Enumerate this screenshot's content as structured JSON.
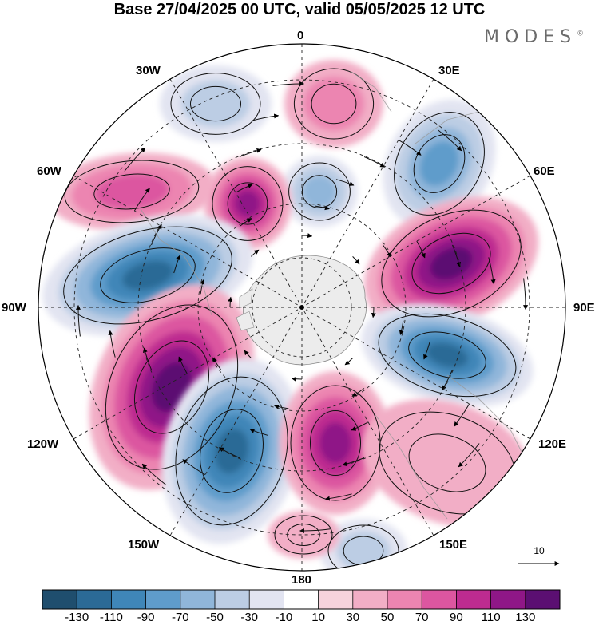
{
  "title": "Base 27/04/2025 00 UTC, valid 05/05/2025 12 UTC",
  "brand": "MODES",
  "brand_mark": "®",
  "longitude_labels": {
    "top": "0",
    "top_left": "30W",
    "top_right": "30E",
    "upper_left": "60W",
    "upper_right": "60E",
    "left": "90W",
    "right": "90E",
    "lower_left": "120W",
    "lower_right": "120E",
    "bottom_left": "150W",
    "bottom_right": "150E",
    "bottom": "180"
  },
  "vector_scale": {
    "label": "10"
  },
  "colorbar": {
    "colors": [
      "#1f4e6e",
      "#2b6a96",
      "#3f86b8",
      "#5f9ccb",
      "#90b6da",
      "#bccde4",
      "#e2e4f1",
      "#ffffff",
      "#f6d3dc",
      "#f2aec6",
      "#ec85b1",
      "#dc56a0",
      "#bd2b90",
      "#8f1787",
      "#5b0f72"
    ],
    "labels": [
      "-130",
      "-110",
      "-90",
      "-70",
      "-50",
      "-30",
      "-10",
      "10",
      "30",
      "50",
      "70",
      "90",
      "110",
      "130"
    ]
  },
  "map": {
    "projection": "polar stereographic, south pole centered",
    "anomaly_centers": [
      {
        "name": "positive-center-north-30e",
        "sign": "positive",
        "level": 50
      },
      {
        "name": "negative-center-45e",
        "sign": "negative",
        "level": -90
      },
      {
        "name": "negative-center-15w",
        "sign": "negative",
        "level": -50
      },
      {
        "name": "negative-center-0-inner",
        "sign": "negative",
        "level": -70
      },
      {
        "name": "positive-center-60w",
        "sign": "positive",
        "level": 70
      },
      {
        "name": "positive-center-40w-inner",
        "sign": "positive",
        "level": 110
      },
      {
        "name": "positive-center-70e",
        "sign": "positive",
        "level": 130
      },
      {
        "name": "negative-center-80w",
        "sign": "negative",
        "level": -130
      },
      {
        "name": "negative-center-100e",
        "sign": "negative",
        "level": -130
      },
      {
        "name": "positive-center-110w",
        "sign": "positive",
        "level": 130
      },
      {
        "name": "negative-center-150w",
        "sign": "negative",
        "level": -130
      },
      {
        "name": "positive-center-170e",
        "sign": "positive",
        "level": 110
      },
      {
        "name": "positive-center-130e",
        "sign": "positive",
        "level": 30
      },
      {
        "name": "negative-center-160e-edge",
        "sign": "negative",
        "level": -50
      },
      {
        "name": "positive-center-170w-edge",
        "sign": "positive",
        "level": 30
      }
    ]
  }
}
